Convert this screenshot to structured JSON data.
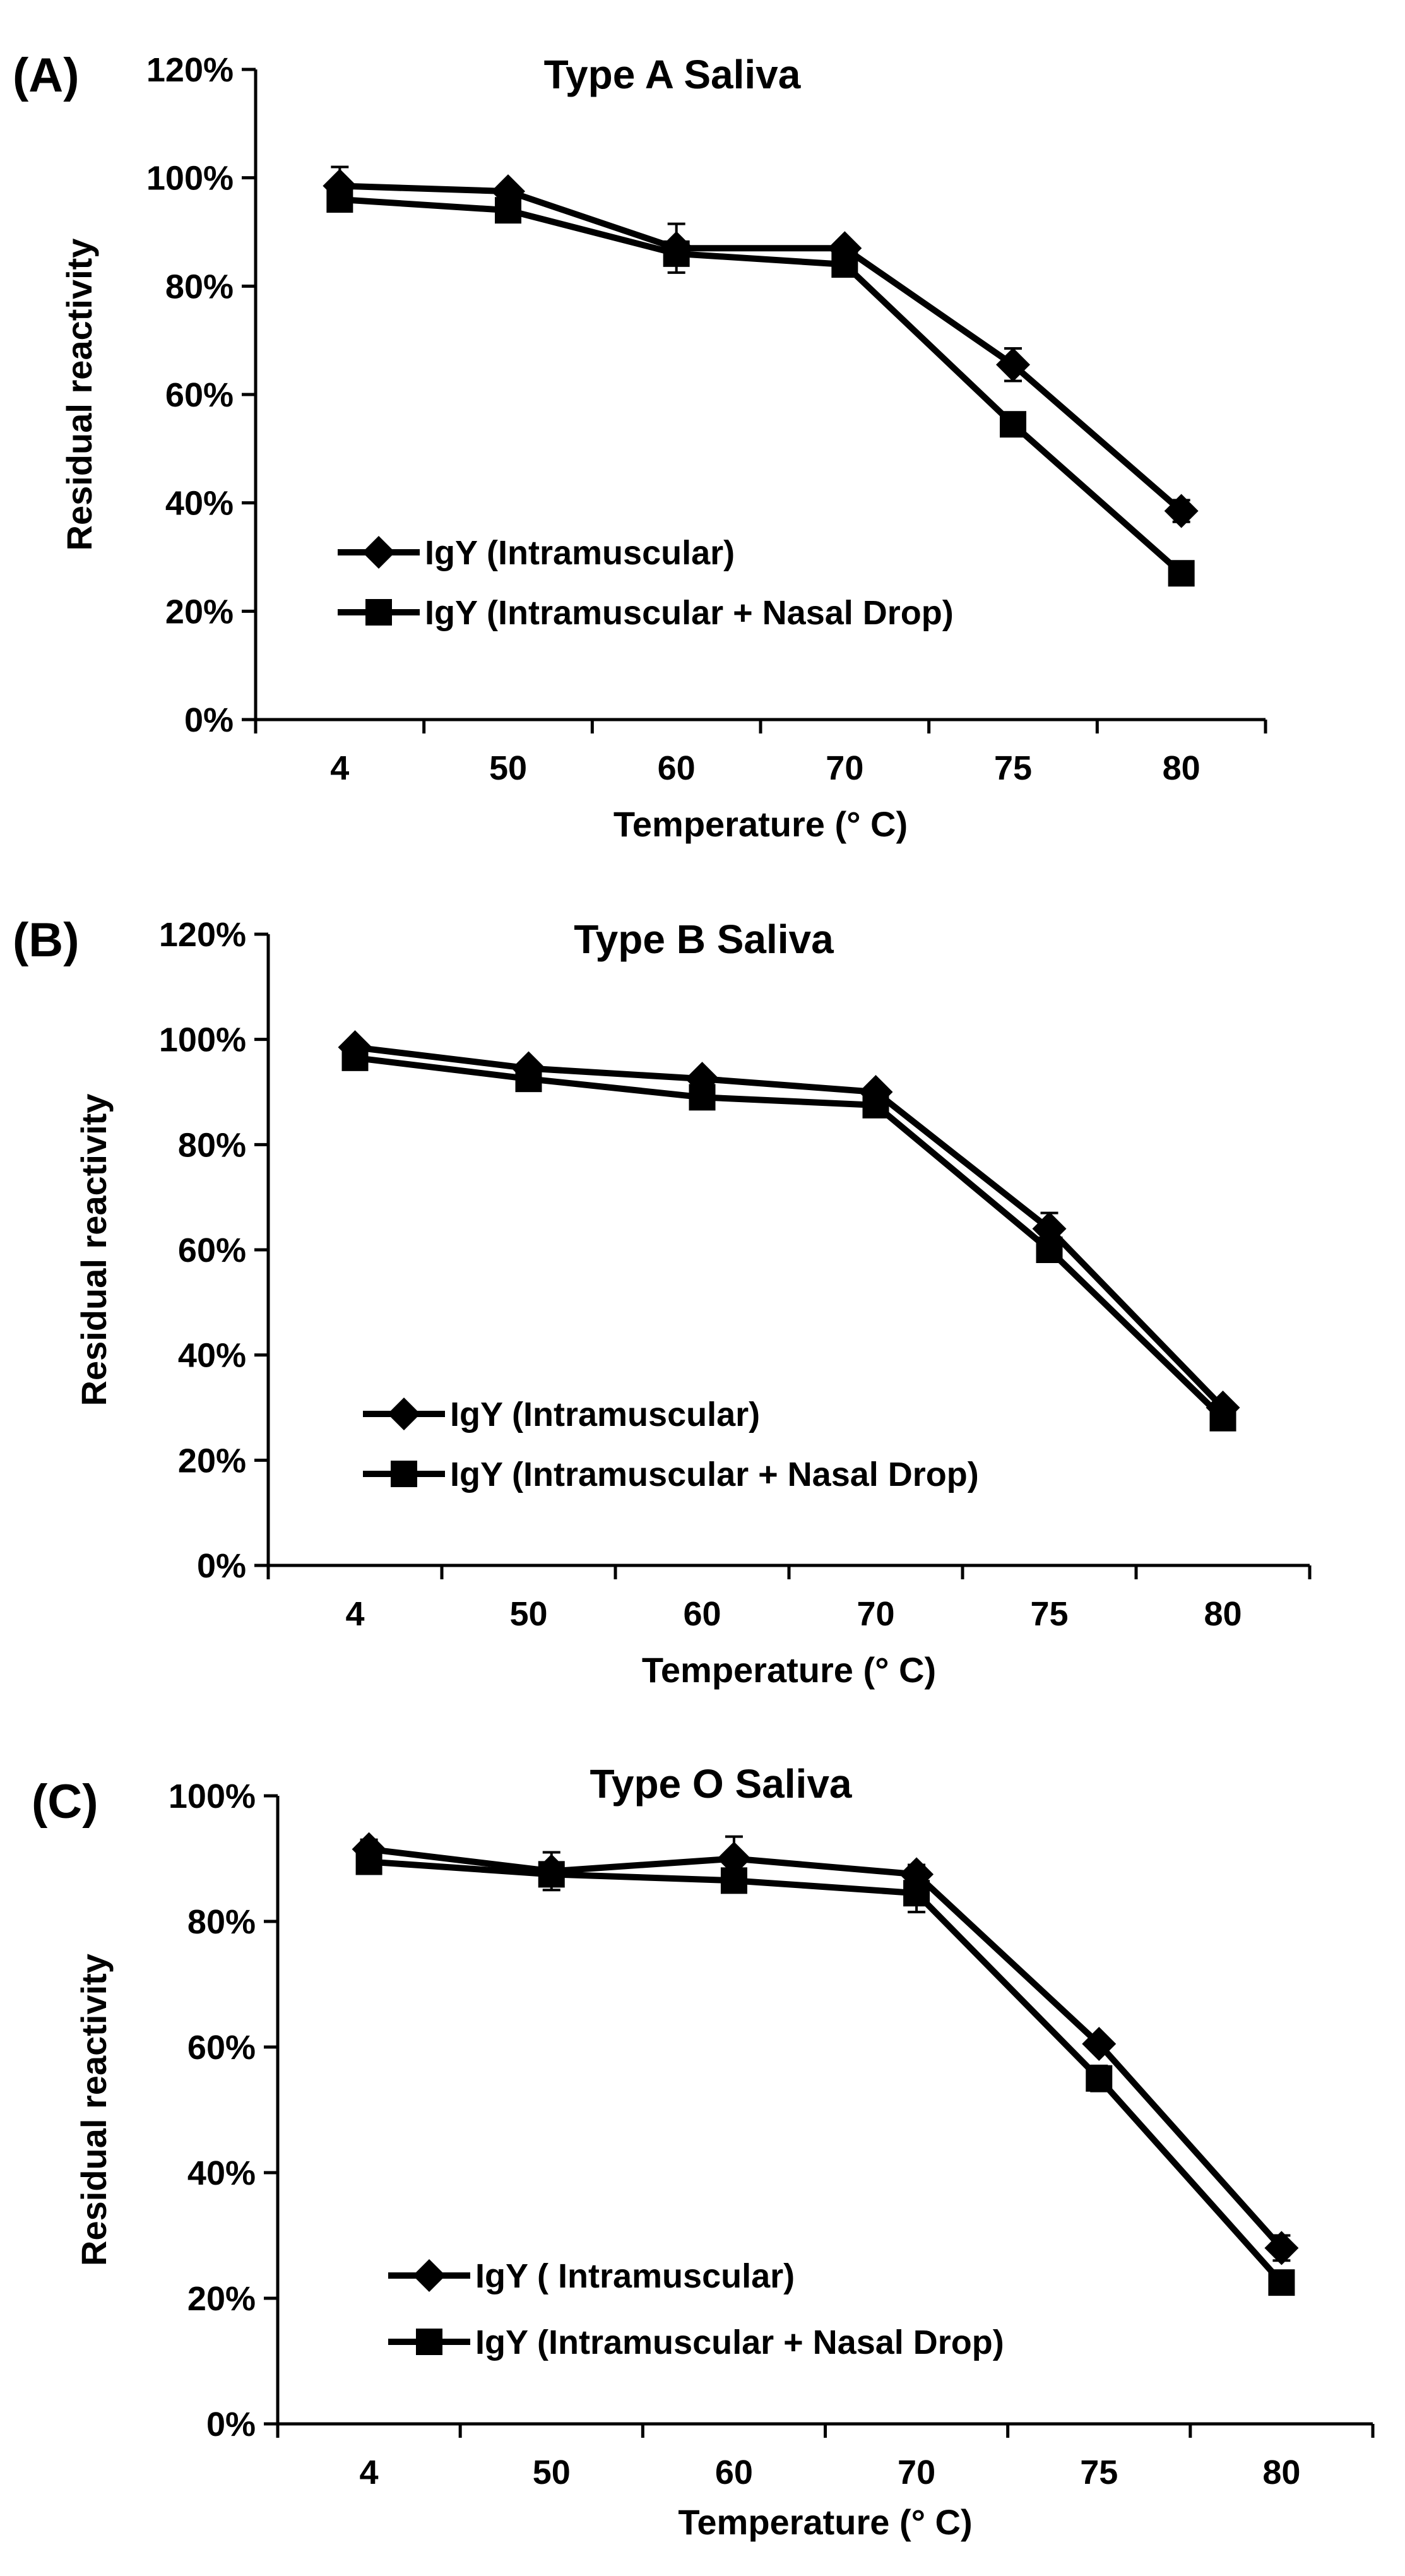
{
  "chart_data": [
    {
      "panel_label": "(A)",
      "type": "line",
      "title": "Type A Saliva",
      "xlabel": "Temperature (° C)",
      "ylabel": "Residual reactivity",
      "categories": [
        "4",
        "50",
        "60",
        "70",
        "75",
        "80"
      ],
      "ylim": [
        0,
        1.2
      ],
      "yticks": [
        "0%",
        "20%",
        "40%",
        "60%",
        "80%",
        "100%",
        "120%"
      ],
      "legend_position": "lower-left",
      "series": [
        {
          "name": "IgY (Intramuscular)",
          "marker": "diamond",
          "values": [
            0.985,
            0.975,
            0.87,
            0.87,
            0.655,
            0.385
          ],
          "errors": [
            0.035,
            0.01,
            0.045,
            0.01,
            0.03,
            0.02
          ]
        },
        {
          "name": "IgY (Intramuscular + Nasal Drop)",
          "marker": "square",
          "values": [
            0.96,
            0.94,
            0.86,
            0.84,
            0.545,
            0.27
          ],
          "errors": [
            0.01,
            0.01,
            0.01,
            0.01,
            0.01,
            0.01
          ]
        }
      ]
    },
    {
      "panel_label": "(B)",
      "type": "line",
      "title": "Type B Saliva",
      "xlabel": "Temperature (° C)",
      "ylabel": "Residual reactivity",
      "categories": [
        "4",
        "50",
        "60",
        "70",
        "75",
        "80"
      ],
      "ylim": [
        0,
        1.2
      ],
      "yticks": [
        "0%",
        "20%",
        "40%",
        "60%",
        "80%",
        "100%",
        "120%"
      ],
      "legend_position": "lower-left",
      "series": [
        {
          "name": "IgY (Intramuscular)",
          "marker": "diamond",
          "values": [
            0.985,
            0.945,
            0.925,
            0.9,
            0.64,
            0.3
          ],
          "errors": [
            0.01,
            0.01,
            0.01,
            0.01,
            0.03,
            0.01
          ]
        },
        {
          "name": "IgY (Intramuscular + Nasal Drop)",
          "marker": "square",
          "values": [
            0.965,
            0.925,
            0.89,
            0.875,
            0.6,
            0.28
          ],
          "errors": [
            0.01,
            0.01,
            0.01,
            0.01,
            0.01,
            0.01
          ]
        }
      ]
    },
    {
      "panel_label": "(C)",
      "type": "line",
      "title": "Type O Saliva",
      "xlabel": "Temperature (° C)",
      "ylabel": "Residual reactivity",
      "categories": [
        "4",
        "50",
        "60",
        "70",
        "75",
        "80"
      ],
      "ylim": [
        0,
        1.0
      ],
      "yticks": [
        "0%",
        "20%",
        "40%",
        "60%",
        "80%",
        "100%"
      ],
      "legend_position": "lower-left",
      "series": [
        {
          "name": "IgY ( Intramuscular)",
          "marker": "diamond",
          "values": [
            0.915,
            0.88,
            0.9,
            0.875,
            0.605,
            0.28
          ],
          "errors": [
            0.015,
            0.03,
            0.035,
            0.015,
            0.01,
            0.02
          ]
        },
        {
          "name": "IgY (Intramuscular + Nasal Drop)",
          "marker": "square",
          "values": [
            0.895,
            0.875,
            0.865,
            0.845,
            0.55,
            0.225
          ],
          "errors": [
            0.01,
            0.01,
            0.01,
            0.03,
            0.02,
            0.01
          ]
        }
      ]
    }
  ]
}
